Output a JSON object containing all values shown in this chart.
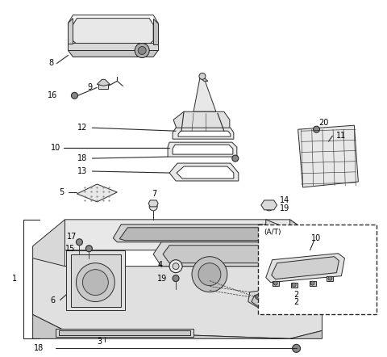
{
  "background_color": "#ffffff",
  "fig_width": 4.8,
  "fig_height": 4.42,
  "dpi": 100,
  "line_color": "#2a2a2a",
  "label_color": "#000000",
  "label_fontsize": 7.0
}
